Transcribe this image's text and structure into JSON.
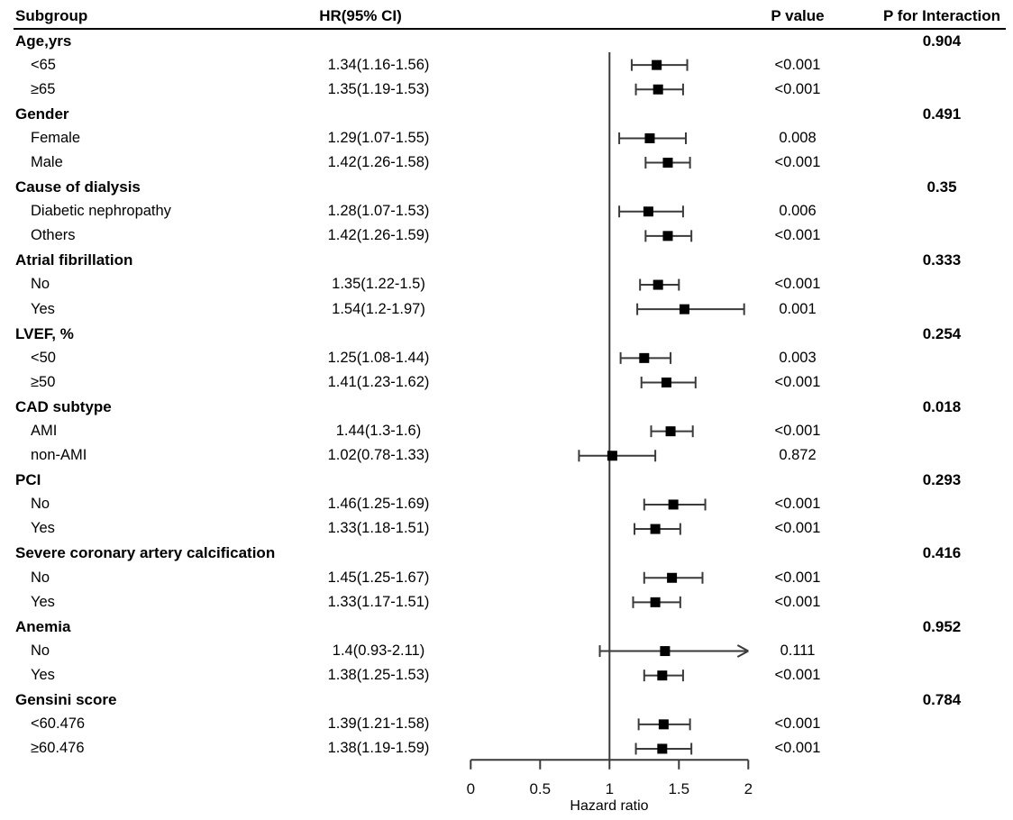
{
  "header": {
    "subgroup": "Subgroup",
    "hr_ci": "HR(95% CI)",
    "p_value": "P value",
    "p_interaction": "P for Interaction"
  },
  "chart_data": {
    "type": "forest",
    "xlabel": "Hazard ratio",
    "x_ticks": [
      0,
      0.5,
      1,
      1.5,
      2
    ],
    "x_range": [
      0,
      2
    ],
    "reference_line": 1,
    "marker_color": "#000000",
    "line_color": "#3a3a3a",
    "rows": [
      {
        "type": "group",
        "label": "Age,yrs",
        "p_interaction": "0.904"
      },
      {
        "type": "item",
        "label": "<65",
        "hr_text": "1.34(1.16-1.56)",
        "hr": 1.34,
        "lo": 1.16,
        "hi": 1.56,
        "p": "<0.001"
      },
      {
        "type": "item",
        "label": "≥65",
        "hr_text": "1.35(1.19-1.53)",
        "hr": 1.35,
        "lo": 1.19,
        "hi": 1.53,
        "p": "<0.001"
      },
      {
        "type": "group",
        "label": "Gender",
        "p_interaction": "0.491"
      },
      {
        "type": "item",
        "label": "Female",
        "hr_text": "1.29(1.07-1.55)",
        "hr": 1.29,
        "lo": 1.07,
        "hi": 1.55,
        "p": "0.008"
      },
      {
        "type": "item",
        "label": "Male",
        "hr_text": "1.42(1.26-1.58)",
        "hr": 1.42,
        "lo": 1.26,
        "hi": 1.58,
        "p": "<0.001"
      },
      {
        "type": "group",
        "label": "Cause of dialysis",
        "p_interaction": "0.35"
      },
      {
        "type": "item",
        "label": "Diabetic nephropathy",
        "hr_text": "1.28(1.07-1.53)",
        "hr": 1.28,
        "lo": 1.07,
        "hi": 1.53,
        "p": "0.006"
      },
      {
        "type": "item",
        "label": "Others",
        "hr_text": "1.42(1.26-1.59)",
        "hr": 1.42,
        "lo": 1.26,
        "hi": 1.59,
        "p": "<0.001"
      },
      {
        "type": "group",
        "label": "Atrial fibrillation",
        "p_interaction": "0.333"
      },
      {
        "type": "item",
        "label": "No",
        "hr_text": "1.35(1.22-1.5)",
        "hr": 1.35,
        "lo": 1.22,
        "hi": 1.5,
        "p": "<0.001"
      },
      {
        "type": "item",
        "label": "Yes",
        "hr_text": "1.54(1.2-1.97)",
        "hr": 1.54,
        "lo": 1.2,
        "hi": 1.97,
        "p": "0.001"
      },
      {
        "type": "group",
        "label": "LVEF, %",
        "p_interaction": "0.254"
      },
      {
        "type": "item",
        "label": "<50",
        "hr_text": "1.25(1.08-1.44)",
        "hr": 1.25,
        "lo": 1.08,
        "hi": 1.44,
        "p": "0.003"
      },
      {
        "type": "item",
        "label": "≥50",
        "hr_text": "1.41(1.23-1.62)",
        "hr": 1.41,
        "lo": 1.23,
        "hi": 1.62,
        "p": "<0.001"
      },
      {
        "type": "group",
        "label": "CAD subtype",
        "p_interaction": "0.018"
      },
      {
        "type": "item",
        "label": "AMI",
        "hr_text": "1.44(1.3-1.6)",
        "hr": 1.44,
        "lo": 1.3,
        "hi": 1.6,
        "p": "<0.001"
      },
      {
        "type": "item",
        "label": "non-AMI",
        "hr_text": "1.02(0.78-1.33)",
        "hr": 1.02,
        "lo": 0.78,
        "hi": 1.33,
        "p": "0.872"
      },
      {
        "type": "group",
        "label": "PCI",
        "p_interaction": "0.293"
      },
      {
        "type": "item",
        "label": "No",
        "hr_text": "1.46(1.25-1.69)",
        "hr": 1.46,
        "lo": 1.25,
        "hi": 1.69,
        "p": "<0.001"
      },
      {
        "type": "item",
        "label": "Yes",
        "hr_text": "1.33(1.18-1.51)",
        "hr": 1.33,
        "lo": 1.18,
        "hi": 1.51,
        "p": "<0.001"
      },
      {
        "type": "group",
        "label": "Severe coronary artery calcification",
        "p_interaction": "0.416"
      },
      {
        "type": "item",
        "label": "No",
        "hr_text": "1.45(1.25-1.67)",
        "hr": 1.45,
        "lo": 1.25,
        "hi": 1.67,
        "p": "<0.001"
      },
      {
        "type": "item",
        "label": "Yes",
        "hr_text": "1.33(1.17-1.51)",
        "hr": 1.33,
        "lo": 1.17,
        "hi": 1.51,
        "p": "<0.001"
      },
      {
        "type": "group",
        "label": "Anemia",
        "p_interaction": "0.952"
      },
      {
        "type": "item",
        "label": "No",
        "hr_text": "1.4(0.93-2.11)",
        "hr": 1.4,
        "lo": 0.93,
        "hi": 2.11,
        "p": "0.111",
        "clipped_hi": true
      },
      {
        "type": "item",
        "label": "Yes",
        "hr_text": "1.38(1.25-1.53)",
        "hr": 1.38,
        "lo": 1.25,
        "hi": 1.53,
        "p": "<0.001"
      },
      {
        "type": "group",
        "label": "Gensini score",
        "p_interaction": "0.784"
      },
      {
        "type": "item",
        "label": "<60.476",
        "hr_text": "1.39(1.21-1.58)",
        "hr": 1.39,
        "lo": 1.21,
        "hi": 1.58,
        "p": "<0.001"
      },
      {
        "type": "item",
        "label": "≥60.476",
        "hr_text": "1.38(1.19-1.59)",
        "hr": 1.38,
        "lo": 1.19,
        "hi": 1.59,
        "p": "<0.001"
      }
    ]
  }
}
